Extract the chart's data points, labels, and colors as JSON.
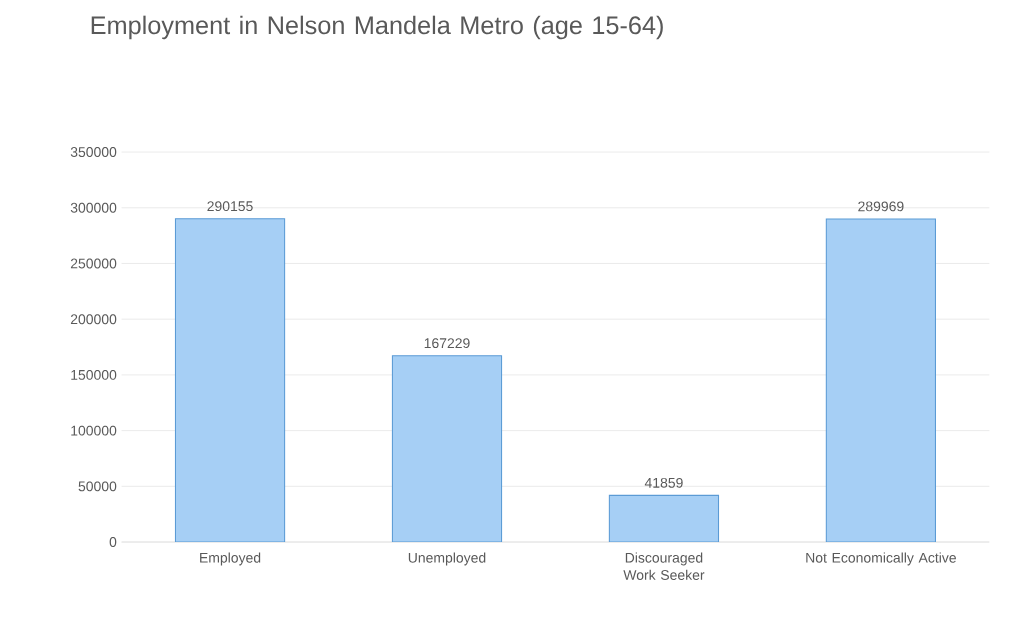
{
  "chart_data": {
    "type": "bar",
    "title": "Employment in Nelson Mandela Metro (age 15-64)",
    "categories": [
      "Employed",
      "Unemployed",
      "Discouraged Work Seeker",
      "Not Economically Active"
    ],
    "values": [
      290155,
      167229,
      41859,
      289969
    ],
    "color": "#a6cff5",
    "ylim": [
      0,
      350000
    ],
    "yticks": [
      0,
      50000,
      100000,
      150000,
      200000,
      250000,
      300000,
      350000
    ],
    "grid": "y",
    "data_labels": true
  }
}
